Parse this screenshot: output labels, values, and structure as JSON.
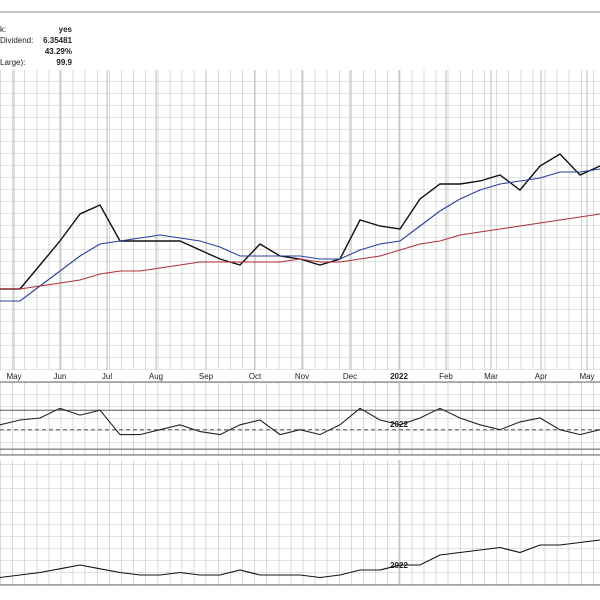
{
  "header": {
    "rows": [
      {
        "label": "k:",
        "value": "yes"
      },
      {
        "label": "Dividend:",
        "value": "6.35481"
      },
      {
        "label": "",
        "value": "43.29%"
      },
      {
        "label": "Large):",
        "value": "99.9"
      }
    ]
  },
  "chart_data": [
    {
      "type": "line",
      "x": [
        0,
        2,
        4,
        6,
        8,
        10,
        12,
        14,
        16,
        18,
        20,
        22,
        24,
        26,
        28,
        30,
        32,
        34,
        36,
        38,
        40,
        42,
        44,
        46,
        48,
        50,
        52,
        54,
        56,
        58,
        60
      ],
      "xlim": [
        0,
        60
      ],
      "ylim": [
        0,
        100
      ],
      "xticks": [
        {
          "value": 1.4,
          "label": "May"
        },
        {
          "value": 6,
          "label": "Jun"
        },
        {
          "value": 10.7,
          "label": "Jul"
        },
        {
          "value": 15.6,
          "label": "Aug"
        },
        {
          "value": 20.6,
          "label": "Sep"
        },
        {
          "value": 25.5,
          "label": "Oct"
        },
        {
          "value": 30.2,
          "label": "Nov"
        },
        {
          "value": 35,
          "label": "Dec"
        },
        {
          "value": 39.9,
          "label": "2022"
        },
        {
          "value": 44.6,
          "label": "Feb"
        },
        {
          "value": 49.1,
          "label": "Mar"
        },
        {
          "value": 54.1,
          "label": "Apr"
        },
        {
          "value": 58.7,
          "label": "May"
        }
      ],
      "series": [
        {
          "color": "#111111",
          "values": [
            27,
            27,
            35,
            43,
            52,
            55,
            43,
            43,
            43,
            43,
            40,
            37,
            35,
            42,
            38,
            37,
            35,
            37,
            50,
            48,
            47,
            57,
            62,
            62,
            63,
            65,
            60,
            68,
            72,
            65,
            68
          ]
        },
        {
          "color": "#2b3f9e",
          "values": [
            23,
            23,
            28,
            33,
            38,
            42,
            43,
            44,
            45,
            44,
            43,
            41,
            38,
            38,
            38,
            38,
            37,
            37,
            40,
            42,
            43,
            48,
            53,
            57,
            60,
            62,
            63,
            64,
            66,
            66,
            67
          ]
        },
        {
          "color": "#b0303a",
          "values": [
            27,
            27,
            28,
            29,
            30,
            32,
            33,
            33,
            34,
            35,
            36,
            36,
            36,
            36,
            36,
            37,
            36,
            36,
            37,
            38,
            40,
            42,
            43,
            45,
            46,
            47,
            48,
            49,
            50,
            51,
            52
          ]
        }
      ]
    },
    {
      "type": "line",
      "x": [
        0,
        2,
        4,
        6,
        8,
        10,
        12,
        14,
        16,
        18,
        20,
        22,
        24,
        26,
        28,
        30,
        32,
        34,
        36,
        38,
        40,
        42,
        44,
        46,
        48,
        50,
        52,
        54,
        56,
        58,
        60
      ],
      "xlim": [
        0,
        60
      ],
      "ylim": [
        24,
        99
      ],
      "hlines": [
        70,
        50,
        30
      ],
      "fill_color": "#5a8a5a",
      "xticks": [
        {
          "value": 39.9,
          "label": "2022"
        }
      ],
      "series": [
        {
          "color": "#222222",
          "values": [
            55,
            60,
            62,
            72,
            65,
            70,
            45,
            45,
            50,
            55,
            48,
            45,
            55,
            60,
            45,
            50,
            45,
            55,
            72,
            60,
            55,
            62,
            72,
            62,
            55,
            50,
            58,
            62,
            50,
            45,
            50
          ]
        }
      ]
    },
    {
      "type": "line",
      "x": [
        0,
        2,
        4,
        6,
        8,
        10,
        12,
        14,
        16,
        18,
        20,
        22,
        24,
        26,
        28,
        30,
        32,
        34,
        36,
        38,
        40,
        42,
        44,
        46,
        48,
        50,
        52,
        54,
        56,
        58,
        60
      ],
      "xlim": [
        0,
        60
      ],
      "ylim": [
        0,
        100
      ],
      "xticks": [
        {
          "value": 39.9,
          "label": "2022"
        }
      ],
      "series": [
        {
          "color": "#111111",
          "values": [
            6,
            8,
            10,
            13,
            16,
            13,
            10,
            8,
            8,
            10,
            8,
            8,
            12,
            8,
            8,
            8,
            6,
            8,
            12,
            12,
            16,
            16,
            24,
            26,
            28,
            30,
            26,
            32,
            32,
            34,
            36
          ]
        }
      ]
    }
  ]
}
